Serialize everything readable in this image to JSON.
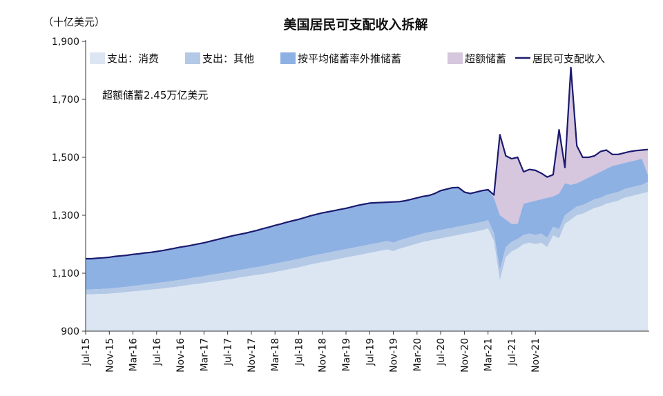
{
  "chart_data": {
    "type": "area",
    "title": "美国居民可支配收入拆解",
    "ylabel": "（十亿美元）",
    "ylim": [
      900,
      1900
    ],
    "yticks": [
      900,
      1100,
      1300,
      1500,
      1700,
      1900
    ],
    "ytick_labels": [
      "900",
      "1,100",
      "1,300",
      "1,500",
      "1,700",
      "1,900"
    ],
    "grid": false,
    "legend_position": "top",
    "annotation": "超额储蓄2.45万亿美元",
    "xtick_labels": [
      "Jul-15",
      "Nov-15",
      "Mar-16",
      "Jul-16",
      "Nov-16",
      "Mar-17",
      "Jul-17",
      "Nov-17",
      "Mar-18",
      "Jul-18",
      "Nov-18",
      "Mar-19",
      "Jul-19",
      "Nov-19",
      "Mar-20",
      "Jul-20",
      "Nov-20",
      "Mar-21",
      "Jul-21",
      "Nov-21"
    ],
    "x_start": "2015-07",
    "series": [
      {
        "name": "支出：消费",
        "color": "#dce6f2",
        "values": [
          1027,
          1027,
          1028,
          1028,
          1029,
          1031,
          1033,
          1035,
          1037,
          1039,
          1041,
          1043,
          1045,
          1047,
          1050,
          1052,
          1055,
          1058,
          1061,
          1063,
          1066,
          1069,
          1072,
          1075,
          1078,
          1081,
          1085,
          1088,
          1091,
          1094,
          1097,
          1100,
          1104,
          1108,
          1112,
          1116,
          1120,
          1125,
          1130,
          1134,
          1138,
          1142,
          1146,
          1150,
          1154,
          1158,
          1162,
          1166,
          1170,
          1174,
          1178,
          1182,
          1176,
          1184,
          1190,
          1196,
          1202,
          1208,
          1212,
          1216,
          1220,
          1224,
          1228,
          1232,
          1236,
          1240,
          1244,
          1248,
          1254,
          1210,
          1075,
          1155,
          1175,
          1185,
          1200,
          1205,
          1200,
          1205,
          1190,
          1230,
          1220,
          1270,
          1285,
          1300,
          1305,
          1315,
          1325,
          1330,
          1340,
          1345,
          1350,
          1360,
          1365,
          1370,
          1375,
          1380
        ]
      },
      {
        "name": "支出：其他",
        "color": "#b4c9e6",
        "values": [
          1043,
          1044,
          1045,
          1046,
          1047,
          1049,
          1051,
          1053,
          1056,
          1058,
          1061,
          1063,
          1066,
          1068,
          1071,
          1074,
          1077,
          1080,
          1084,
          1087,
          1090,
          1094,
          1097,
          1100,
          1104,
          1107,
          1111,
          1114,
          1118,
          1121,
          1125,
          1129,
          1133,
          1137,
          1141,
          1145,
          1149,
          1154,
          1159,
          1163,
          1167,
          1171,
          1175,
          1179,
          1183,
          1187,
          1191,
          1195,
          1199,
          1203,
          1207,
          1211,
          1205,
          1213,
          1219,
          1225,
          1231,
          1237,
          1241,
          1245,
          1249,
          1253,
          1257,
          1261,
          1265,
          1269,
          1273,
          1277,
          1283,
          1238,
          1112,
          1190,
          1208,
          1218,
          1232,
          1237,
          1232,
          1237,
          1222,
          1260,
          1252,
          1300,
          1315,
          1330,
          1335,
          1345,
          1355,
          1360,
          1370,
          1375,
          1380,
          1390,
          1395,
          1400,
          1405,
          1415
        ]
      },
      {
        "name": "按平均储蓄率外推储蓄",
        "color": "#8eb1e3",
        "values": [
          1150,
          1150,
          1152,
          1153,
          1155,
          1158,
          1160,
          1162,
          1165,
          1167,
          1170,
          1172,
          1175,
          1178,
          1182,
          1186,
          1190,
          1193,
          1197,
          1201,
          1205,
          1210,
          1215,
          1220,
          1225,
          1230,
          1234,
          1238,
          1243,
          1248,
          1254,
          1259,
          1265,
          1270,
          1276,
          1281,
          1286,
          1292,
          1298,
          1303,
          1308,
          1312,
          1316,
          1320,
          1324,
          1329,
          1334,
          1338,
          1342,
          1343,
          1344,
          1345,
          1346,
          1347,
          1350,
          1355,
          1360,
          1365,
          1368,
          1375,
          1385,
          1390,
          1395,
          1396,
          1380,
          1375,
          1380,
          1385,
          1388,
          1360,
          1300,
          1285,
          1270,
          1270,
          1340,
          1345,
          1350,
          1355,
          1360,
          1365,
          1375,
          1410,
          1405,
          1410,
          1420,
          1430,
          1440,
          1450,
          1460,
          1470,
          1475,
          1480,
          1485,
          1490,
          1495,
          1440
        ]
      },
      {
        "name": "居民可支配收入",
        "color": "#1a1a6e",
        "values": [
          1150,
          1150,
          1152,
          1153,
          1155,
          1158,
          1160,
          1162,
          1165,
          1167,
          1170,
          1172,
          1175,
          1178,
          1182,
          1186,
          1190,
          1193,
          1197,
          1201,
          1205,
          1210,
          1215,
          1220,
          1225,
          1230,
          1234,
          1238,
          1243,
          1248,
          1254,
          1259,
          1265,
          1270,
          1276,
          1281,
          1286,
          1292,
          1298,
          1303,
          1308,
          1312,
          1316,
          1320,
          1324,
          1329,
          1334,
          1338,
          1342,
          1343,
          1344,
          1345,
          1346,
          1347,
          1350,
          1355,
          1360,
          1365,
          1368,
          1375,
          1385,
          1390,
          1395,
          1396,
          1380,
          1375,
          1380,
          1385,
          1388,
          1370,
          1578,
          1505,
          1495,
          1500,
          1450,
          1458,
          1455,
          1445,
          1432,
          1440,
          1595,
          1465,
          1810,
          1540,
          1500,
          1500,
          1505,
          1520,
          1525,
          1510,
          1510,
          1515,
          1520,
          1523,
          1525,
          1527
        ]
      }
    ],
    "excess_savings": {
      "name": "超额储蓄",
      "color": "#d6c6de"
    }
  }
}
